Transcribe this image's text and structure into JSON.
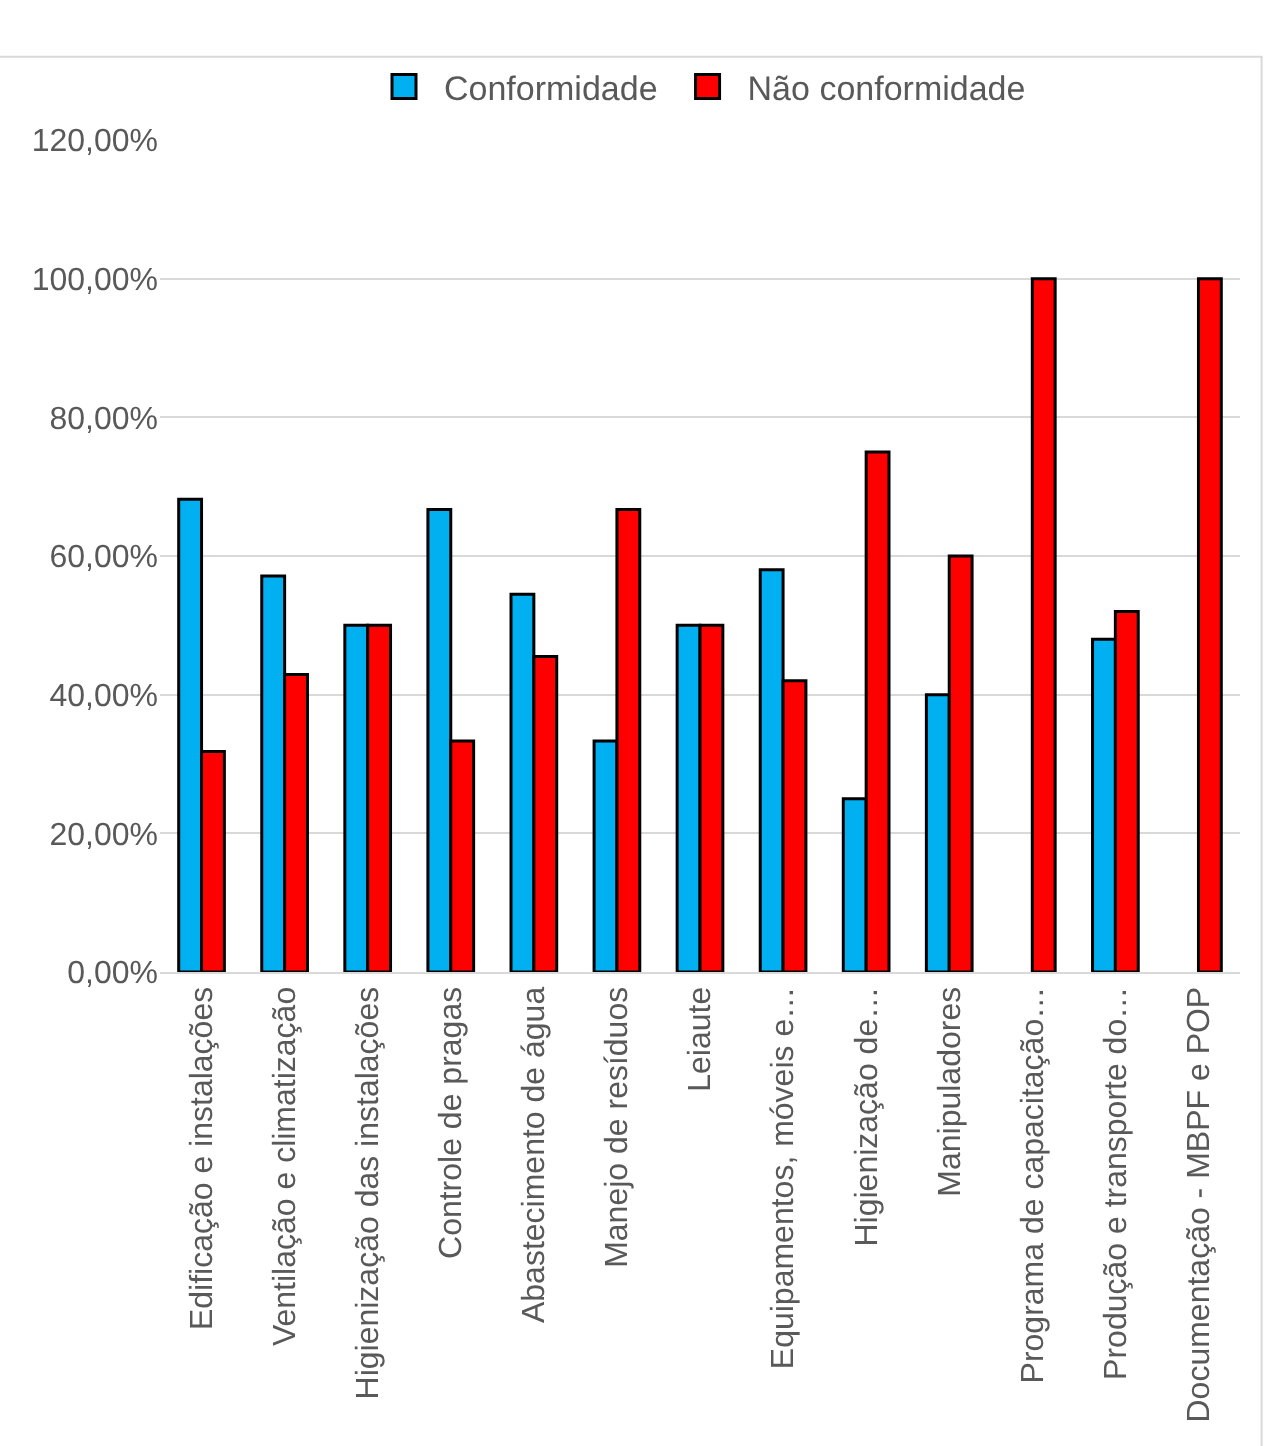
{
  "chart_data": {
    "type": "bar",
    "categories": [
      "Edificação e instalações",
      "Ventilação e climatização",
      "Higienização das instalações",
      "Controle de pragas",
      "Abastecimento de água",
      "Manejo de resíduos",
      "Leiaute",
      "Equipamentos, móveis e…",
      "Higienização de…",
      "Manipuladores",
      "Programa de capacitação…",
      "Produção e transporte do…",
      "Documentação - MBPF e POP"
    ],
    "series": [
      {
        "name": "Conformidade",
        "color": "#00b0f0",
        "values": [
          68.2,
          57.1,
          50,
          66.7,
          54.5,
          33.3,
          50,
          58,
          25,
          40,
          0,
          48,
          0
        ]
      },
      {
        "name": "Não conformidade",
        "color": "#ff0000",
        "values": [
          31.8,
          42.9,
          50,
          33.3,
          45.5,
          66.7,
          50,
          42,
          75,
          60,
          100,
          52,
          100
        ]
      }
    ],
    "ylim": [
      0,
      120
    ],
    "yticks": [
      {
        "value": 0,
        "label": "0,00%"
      },
      {
        "value": 20,
        "label": "20,00%"
      },
      {
        "value": 40,
        "label": "40,00%"
      },
      {
        "value": 60,
        "label": "60,00%"
      },
      {
        "value": 80,
        "label": "80,00%"
      },
      {
        "value": 100,
        "label": "100,00%"
      },
      {
        "value": 120,
        "label": "120,00%"
      }
    ],
    "grid": "y",
    "legend": "top"
  }
}
